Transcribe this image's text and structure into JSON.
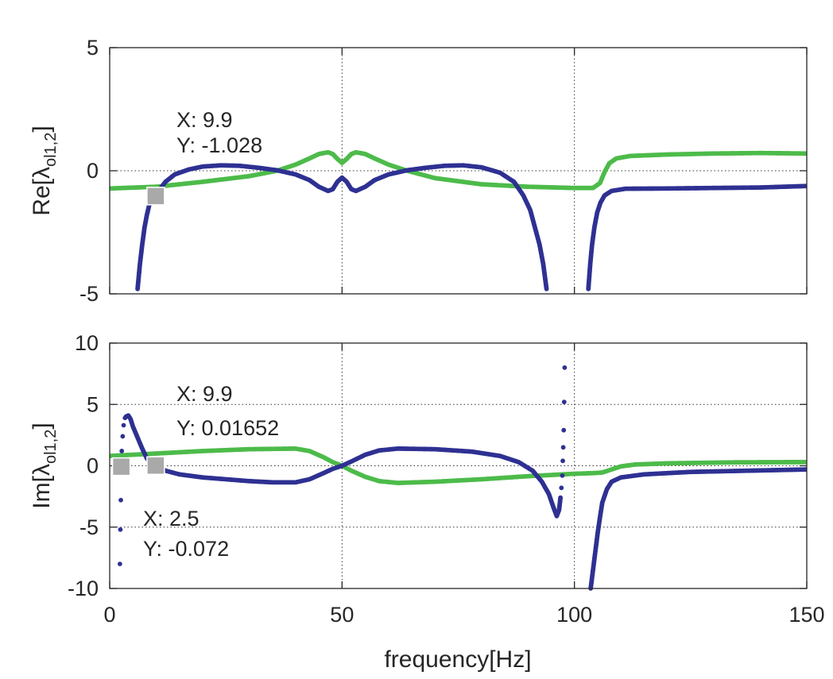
{
  "chart_data": [
    {
      "type": "scatter",
      "title": "",
      "xlabel": "",
      "ylabel": {
        "prefix": "Re[",
        "symbol": "λ",
        "subscript": "ol1,2",
        "suffix": "]"
      },
      "xlim": [
        0,
        150
      ],
      "ylim": [
        -5,
        5
      ],
      "xticks": [
        0,
        50,
        100,
        150
      ],
      "yticks": [
        5,
        0,
        -5
      ],
      "xtick_labels_shown": false,
      "ytick_labels": [
        "5",
        "0",
        "-5"
      ],
      "grid": "dotted",
      "series": [
        {
          "color": "#2E3192",
          "points_left": [
            [
              6,
              -4.8
            ],
            [
              6.5,
              -3.8
            ],
            [
              7,
              -3.0
            ],
            [
              7.5,
              -2.3
            ],
            [
              8,
              -1.8
            ],
            [
              8.5,
              -1.4
            ],
            [
              9,
              -1.15
            ],
            [
              9.9,
              -1.028
            ],
            [
              11,
              -0.7
            ],
            [
              12,
              -0.45
            ],
            [
              14,
              -0.15
            ],
            [
              17,
              0.05
            ],
            [
              20,
              0.17
            ],
            [
              24,
              0.22
            ],
            [
              28,
              0.2
            ],
            [
              32,
              0.12
            ],
            [
              36,
              0.02
            ],
            [
              40,
              -0.15
            ],
            [
              43,
              -0.38
            ],
            [
              45,
              -0.65
            ],
            [
              47,
              -0.82
            ],
            [
              48,
              -0.75
            ],
            [
              49,
              -0.45
            ],
            [
              50,
              -0.28
            ],
            [
              51,
              -0.45
            ],
            [
              52,
              -0.75
            ],
            [
              53,
              -0.82
            ],
            [
              55,
              -0.65
            ],
            [
              57,
              -0.38
            ],
            [
              60,
              -0.15
            ],
            [
              64,
              0.02
            ],
            [
              68,
              0.12
            ],
            [
              72,
              0.2
            ],
            [
              76,
              0.22
            ],
            [
              80,
              0.14
            ],
            [
              84,
              -0.08
            ],
            [
              87,
              -0.45
            ],
            [
              89,
              -1.0
            ],
            [
              90.5,
              -1.6
            ],
            [
              91.5,
              -2.3
            ],
            [
              92.5,
              -3.0
            ],
            [
              93.3,
              -3.8
            ],
            [
              94,
              -4.8
            ]
          ],
          "points_right": [
            [
              103,
              -4.8
            ],
            [
              103.4,
              -3.8
            ],
            [
              103.8,
              -3.0
            ],
            [
              104.3,
              -2.3
            ],
            [
              104.9,
              -1.7
            ],
            [
              105.6,
              -1.3
            ],
            [
              106.5,
              -1.0
            ],
            [
              108,
              -0.82
            ],
            [
              111,
              -0.73
            ],
            [
              120,
              -0.72
            ],
            [
              130,
              -0.7
            ],
            [
              140,
              -0.68
            ],
            [
              150,
              -0.62
            ]
          ]
        },
        {
          "color": "#4DBB4A",
          "points": [
            [
              0,
              -0.72
            ],
            [
              10,
              -0.65
            ],
            [
              20,
              -0.45
            ],
            [
              30,
              -0.22
            ],
            [
              36,
              0.0
            ],
            [
              40,
              0.25
            ],
            [
              43,
              0.5
            ],
            [
              45,
              0.68
            ],
            [
              47,
              0.75
            ],
            [
              48,
              0.68
            ],
            [
              49,
              0.48
            ],
            [
              50,
              0.32
            ],
            [
              51,
              0.48
            ],
            [
              52,
              0.68
            ],
            [
              53,
              0.75
            ],
            [
              55,
              0.68
            ],
            [
              57,
              0.5
            ],
            [
              60,
              0.25
            ],
            [
              64,
              0.0
            ],
            [
              70,
              -0.3
            ],
            [
              80,
              -0.55
            ],
            [
              90,
              -0.65
            ],
            [
              100,
              -0.7
            ],
            [
              104,
              -0.7
            ],
            [
              105.5,
              -0.5
            ],
            [
              106.5,
              -0.05
            ],
            [
              107.5,
              0.3
            ],
            [
              109,
              0.5
            ],
            [
              112,
              0.6
            ],
            [
              120,
              0.66
            ],
            [
              130,
              0.7
            ],
            [
              140,
              0.72
            ],
            [
              150,
              0.7
            ]
          ]
        }
      ],
      "datatips": [
        {
          "x": 9.9,
          "y": -1.028,
          "x_text": "X: 9.9",
          "y_text": "Y: -1.028"
        }
      ]
    },
    {
      "type": "scatter",
      "title": "",
      "xlabel": "frequency[Hz]",
      "ylabel": {
        "prefix": "Im[",
        "symbol": "λ",
        "subscript": "ol1,2",
        "suffix": "]"
      },
      "xlim": [
        0,
        150
      ],
      "ylim": [
        -10,
        10
      ],
      "xticks": [
        0,
        50,
        100,
        150
      ],
      "xtick_labels": [
        "0",
        "50",
        "100",
        "150"
      ],
      "yticks": [
        10,
        5,
        0,
        -5,
        -10
      ],
      "ytick_labels": [
        "10",
        "5",
        "0",
        "-5",
        "-10"
      ],
      "grid": "dotted",
      "series": [
        {
          "color": "#2E3192",
          "dots": [
            [
              2.2,
              -8.0
            ],
            [
              2.3,
              -5.2
            ],
            [
              2.4,
              -2.8
            ],
            [
              2.5,
              -0.072
            ],
            [
              2.6,
              1.2
            ],
            [
              2.8,
              2.4
            ],
            [
              3.0,
              3.3
            ],
            [
              3.3,
              3.9
            ]
          ],
          "points_left": [
            [
              3.5,
              4.0
            ],
            [
              4,
              4.1
            ],
            [
              4.5,
              3.8
            ],
            [
              5,
              3.2
            ],
            [
              6,
              2.3
            ],
            [
              7,
              1.4
            ],
            [
              8,
              0.6
            ],
            [
              9,
              0.2
            ],
            [
              9.9,
              0.01652
            ],
            [
              12,
              -0.4
            ],
            [
              15,
              -0.7
            ],
            [
              20,
              -0.95
            ],
            [
              25,
              -1.1
            ],
            [
              30,
              -1.25
            ],
            [
              35,
              -1.35
            ],
            [
              40,
              -1.35
            ],
            [
              43,
              -1.1
            ],
            [
              46,
              -0.6
            ],
            [
              48,
              -0.25
            ],
            [
              50,
              0.0
            ],
            [
              52,
              0.35
            ],
            [
              55,
              0.9
            ],
            [
              58,
              1.25
            ],
            [
              62,
              1.4
            ],
            [
              70,
              1.35
            ],
            [
              78,
              1.15
            ],
            [
              84,
              0.8
            ],
            [
              88,
              0.3
            ],
            [
              91,
              -0.4
            ],
            [
              93,
              -1.3
            ],
            [
              94.5,
              -2.3
            ],
            [
              95.5,
              -3.4
            ],
            [
              96.2,
              -4.1
            ],
            [
              96.7,
              -3.6
            ],
            [
              97,
              -2.6
            ]
          ],
          "dots_right": [
            [
              97.2,
              -1.8
            ],
            [
              97.4,
              -0.8
            ],
            [
              97.5,
              0.4
            ],
            [
              97.6,
              1.5
            ],
            [
              97.7,
              2.9
            ],
            [
              97.8,
              5.2
            ],
            [
              97.9,
              8.0
            ]
          ],
          "points_right": [
            [
              103.5,
              -10
            ],
            [
              104,
              -8.5
            ],
            [
              104.5,
              -7.0
            ],
            [
              105,
              -5.5
            ],
            [
              105.5,
              -4.2
            ],
            [
              106,
              -3.0
            ],
            [
              107,
              -1.9
            ],
            [
              108,
              -1.3
            ],
            [
              110,
              -0.95
            ],
            [
              115,
              -0.7
            ],
            [
              125,
              -0.5
            ],
            [
              140,
              -0.38
            ],
            [
              150,
              -0.3
            ]
          ]
        },
        {
          "color": "#4DBB4A",
          "points": [
            [
              0,
              0.8
            ],
            [
              10,
              1.0
            ],
            [
              20,
              1.2
            ],
            [
              30,
              1.35
            ],
            [
              40,
              1.4
            ],
            [
              43,
              1.2
            ],
            [
              46,
              0.7
            ],
            [
              48,
              0.3
            ],
            [
              50,
              0.0
            ],
            [
              52,
              -0.4
            ],
            [
              55,
              -0.9
            ],
            [
              58,
              -1.25
            ],
            [
              62,
              -1.4
            ],
            [
              70,
              -1.3
            ],
            [
              80,
              -1.1
            ],
            [
              90,
              -0.85
            ],
            [
              100,
              -0.65
            ],
            [
              104,
              -0.6
            ],
            [
              106,
              -0.55
            ],
            [
              108,
              -0.3
            ],
            [
              110,
              -0.05
            ],
            [
              113,
              0.1
            ],
            [
              120,
              0.2
            ],
            [
              135,
              0.28
            ],
            [
              150,
              0.3
            ]
          ]
        }
      ],
      "datatips": [
        {
          "x": 9.9,
          "y": 0.01652,
          "x_text": "X: 9.9",
          "y_text": "Y: 0.01652"
        },
        {
          "x": 2.5,
          "y": -0.072,
          "x_text": "X: 2.5",
          "y_text": "Y: -0.072"
        }
      ]
    }
  ]
}
